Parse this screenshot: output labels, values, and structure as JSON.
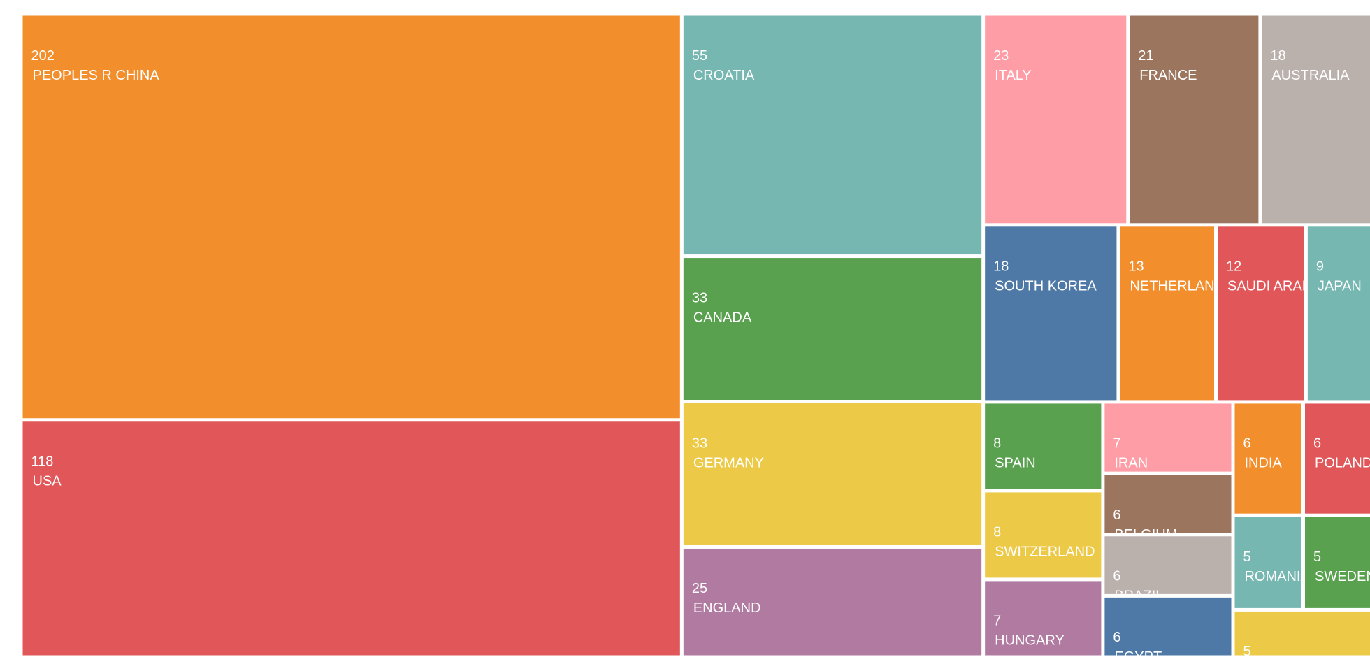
{
  "chart_data": {
    "type": "treemap",
    "categories": [
      "PEOPLES R CHINA",
      "USA",
      "CROATIA",
      "CANADA",
      "GERMANY",
      "ENGLAND",
      "ITALY",
      "FRANCE",
      "AUSTRALIA",
      "SOUTH KOREA",
      "NETHERLANDS",
      "SAUDI ARABIA",
      "JAPAN",
      "SPAIN",
      "SWITZERLAND",
      "HUNGARY",
      "IRAN",
      "BELGIUM",
      "BRAZIL",
      "EGYPT",
      "INDIA",
      "POLAND",
      "ROMANIA",
      "SWEDEN",
      null
    ],
    "values": [
      202,
      118,
      55,
      33,
      33,
      25,
      23,
      21,
      18,
      18,
      13,
      12,
      9,
      8,
      8,
      7,
      7,
      6,
      6,
      6,
      6,
      6,
      5,
      5,
      5
    ],
    "colors": [
      "#f28e2b",
      "#e15759",
      "#76b7b2",
      "#59a14f",
      "#edc948",
      "#b07aa1",
      "#ff9da7",
      "#9c755f",
      "#bab0ac",
      "#4e79a7",
      "#f28e2b",
      "#e15759",
      "#76b7b2",
      "#59a14f",
      "#edc948",
      "#b07aa1",
      "#ff9da7",
      "#9c755f",
      "#bab0ac",
      "#4e79a7",
      "#f28e2b",
      "#e15759",
      "#76b7b2",
      "#59a14f",
      "#edc948"
    ]
  }
}
